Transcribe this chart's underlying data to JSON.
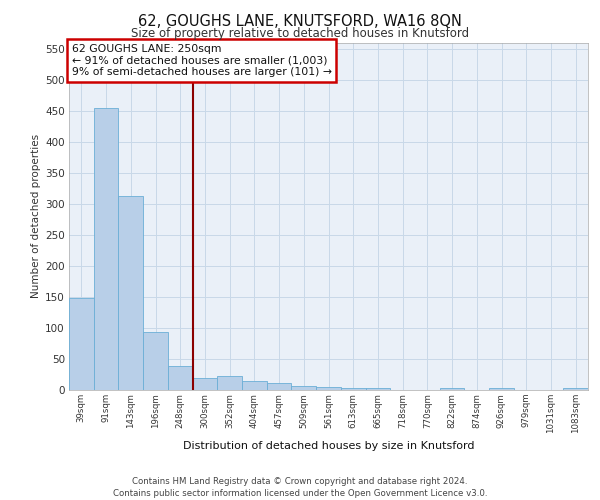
{
  "title1": "62, GOUGHS LANE, KNUTSFORD, WA16 8QN",
  "title2": "Size of property relative to detached houses in Knutsford",
  "xlabel": "Distribution of detached houses by size in Knutsford",
  "ylabel": "Number of detached properties",
  "categories": [
    "39sqm",
    "91sqm",
    "143sqm",
    "196sqm",
    "248sqm",
    "300sqm",
    "352sqm",
    "404sqm",
    "457sqm",
    "509sqm",
    "561sqm",
    "613sqm",
    "665sqm",
    "718sqm",
    "770sqm",
    "822sqm",
    "874sqm",
    "926sqm",
    "979sqm",
    "1031sqm",
    "1083sqm"
  ],
  "values": [
    148,
    455,
    313,
    93,
    38,
    20,
    22,
    14,
    11,
    7,
    5,
    4,
    3,
    0,
    0,
    4,
    0,
    4,
    0,
    0,
    4
  ],
  "bar_color": "#b8cfe8",
  "bar_edge_color": "#6baed6",
  "vline_color": "#8B0000",
  "annotation_text": "62 GOUGHS LANE: 250sqm\n← 91% of detached houses are smaller (1,003)\n9% of semi-detached houses are larger (101) →",
  "annotation_box_color": "#ffffff",
  "annotation_box_edge": "#cc0000",
  "grid_color": "#c8d8e8",
  "background_color": "#eaf0f8",
  "footer_text": "Contains HM Land Registry data © Crown copyright and database right 2024.\nContains public sector information licensed under the Open Government Licence v3.0.",
  "ylim": [
    0,
    560
  ],
  "yticks": [
    0,
    50,
    100,
    150,
    200,
    250,
    300,
    350,
    400,
    450,
    500,
    550
  ]
}
